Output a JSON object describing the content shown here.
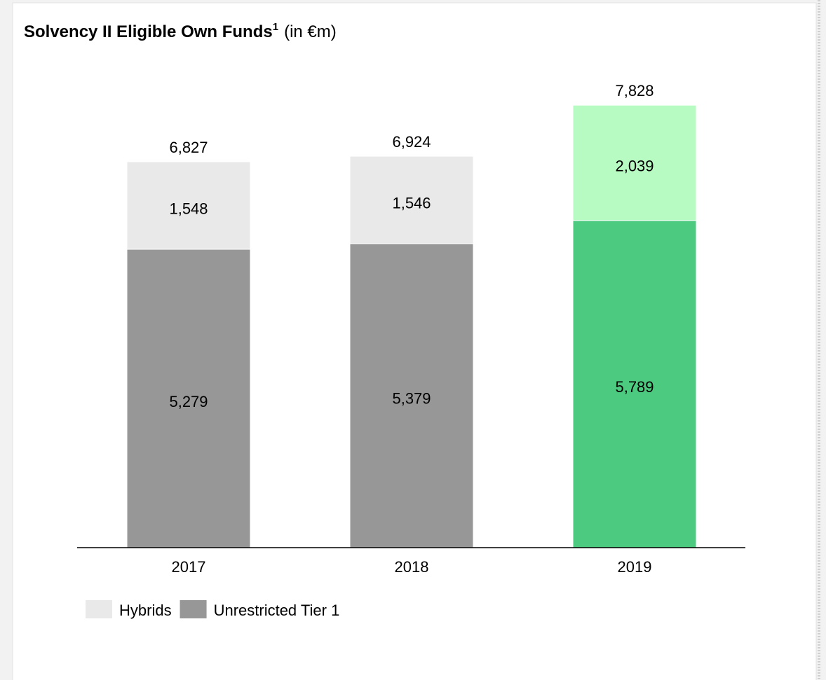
{
  "chart_data": {
    "type": "stacked_bar",
    "title": "Solvency II Eligible Own Funds",
    "title_footnote": "1",
    "subtitle": "(in €m)",
    "categories": [
      "2017",
      "2018",
      "2019"
    ],
    "series": [
      {
        "name": "Unrestricted Tier 1",
        "color": "#979797",
        "colors": [
          "#979797",
          "#979797",
          "#4ccb80"
        ],
        "values": [
          5279,
          5379,
          5789
        ],
        "value_labels": [
          "5,279",
          "5,379",
          "5,789"
        ]
      },
      {
        "name": "Hybrids",
        "color": "#e9e9e9",
        "colors": [
          "#e9e9e9",
          "#e9e9e9",
          "#b8fbc2"
        ],
        "values": [
          1548,
          1546,
          2039
        ],
        "value_labels": [
          "1,548",
          "1,546",
          "2,039"
        ]
      }
    ],
    "totals": [
      6827,
      6924,
      7828
    ],
    "total_labels": [
      "6,827",
      "6,924",
      "7,828"
    ],
    "ylim": [
      0,
      8450
    ],
    "legend": "bottom-left"
  }
}
